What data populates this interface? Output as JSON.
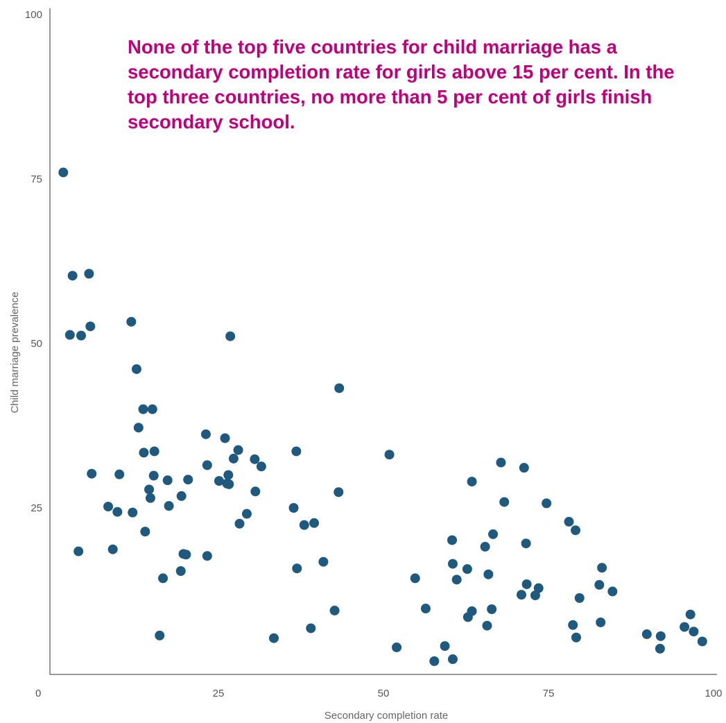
{
  "chart_data": {
    "type": "scatter",
    "title": "",
    "xlabel": "Secondary completion rate",
    "ylabel": "Child marriage prevalence",
    "xlim": [
      0,
      100
    ],
    "ylim": [
      0,
      100
    ],
    "xticks": [
      "0",
      "25",
      "50",
      "75",
      "100"
    ],
    "yticks": [
      "25",
      "50",
      "75",
      "100"
    ],
    "grid": false,
    "annotation": "None of the top five countries for child marriage has a secondary completion rate for girls above 15 per cent. In the top three countries, no more than 5 per cent of girls finish secondary school.",
    "annotation_color": "#c0007a",
    "marker_color": "#1f5a7e",
    "points": [
      [
        1.5,
        76
      ],
      [
        2.9,
        60.3
      ],
      [
        5.4,
        60.6
      ],
      [
        2.5,
        51.3
      ],
      [
        4.2,
        51.2
      ],
      [
        5.6,
        52.6
      ],
      [
        11.8,
        53.3
      ],
      [
        12.6,
        46.1
      ],
      [
        26.8,
        51.1
      ],
      [
        43.3,
        43.2
      ],
      [
        50.9,
        33.1
      ],
      [
        13.6,
        40.0
      ],
      [
        15.0,
        40.0
      ],
      [
        12.9,
        37.2
      ],
      [
        13.7,
        33.4
      ],
      [
        15.3,
        33.6
      ],
      [
        5.8,
        30.2
      ],
      [
        10.0,
        30.1
      ],
      [
        15.2,
        29.9
      ],
      [
        17.3,
        29.2
      ],
      [
        20.4,
        29.3
      ],
      [
        23.1,
        36.2
      ],
      [
        26.0,
        35.6
      ],
      [
        28.0,
        33.8
      ],
      [
        36.8,
        33.6
      ],
      [
        23.3,
        31.5
      ],
      [
        27.3,
        32.5
      ],
      [
        30.5,
        32.4
      ],
      [
        31.5,
        31.3
      ],
      [
        25.1,
        29.1
      ],
      [
        26.5,
        30.0
      ],
      [
        26.3,
        28.7
      ],
      [
        26.6,
        28.6
      ],
      [
        30.6,
        27.5
      ],
      [
        43.2,
        27.4
      ],
      [
        14.5,
        27.8
      ],
      [
        14.7,
        26.5
      ],
      [
        19.4,
        26.8
      ],
      [
        8.3,
        25.2
      ],
      [
        9.7,
        24.4
      ],
      [
        12.0,
        24.3
      ],
      [
        17.5,
        25.3
      ],
      [
        36.4,
        25.0
      ],
      [
        13.9,
        21.4
      ],
      [
        28.2,
        22.6
      ],
      [
        29.3,
        24.1
      ],
      [
        38.0,
        22.4
      ],
      [
        39.5,
        22.7
      ],
      [
        3.8,
        18.4
      ],
      [
        9.0,
        18.7
      ],
      [
        19.7,
        18.0
      ],
      [
        20.1,
        17.9
      ],
      [
        23.3,
        17.7
      ],
      [
        16.6,
        14.3
      ],
      [
        19.3,
        15.4
      ],
      [
        36.9,
        15.8
      ],
      [
        40.9,
        16.8
      ],
      [
        16.1,
        5.6
      ],
      [
        33.4,
        5.2
      ],
      [
        39.0,
        6.7
      ],
      [
        42.6,
        9.4
      ],
      [
        52.0,
        3.8
      ],
      [
        54.8,
        14.3
      ],
      [
        56.4,
        9.7
      ],
      [
        59.3,
        4.0
      ],
      [
        57.7,
        1.7
      ],
      [
        60.5,
        2.0
      ],
      [
        60.4,
        20.1
      ],
      [
        60.5,
        16.5
      ],
      [
        61.1,
        14.1
      ],
      [
        62.7,
        15.7
      ],
      [
        62.8,
        8.4
      ],
      [
        63.4,
        9.3
      ],
      [
        63.4,
        29.0
      ],
      [
        65.4,
        19.1
      ],
      [
        65.7,
        7.1
      ],
      [
        65.9,
        14.9
      ],
      [
        66.4,
        9.6
      ],
      [
        66.6,
        21.0
      ],
      [
        67.8,
        31.9
      ],
      [
        68.3,
        25.9
      ],
      [
        70.9,
        11.8
      ],
      [
        71.3,
        31.1
      ],
      [
        71.6,
        19.6
      ],
      [
        71.7,
        13.4
      ],
      [
        73.0,
        11.7
      ],
      [
        73.5,
        12.8
      ],
      [
        74.7,
        25.7
      ],
      [
        78.1,
        22.9
      ],
      [
        78.7,
        7.2
      ],
      [
        79.1,
        21.6
      ],
      [
        79.2,
        5.3
      ],
      [
        79.7,
        11.3
      ],
      [
        82.7,
        13.3
      ],
      [
        82.9,
        7.6
      ],
      [
        83.1,
        15.9
      ],
      [
        84.7,
        12.3
      ],
      [
        89.9,
        5.8
      ],
      [
        91.9,
        3.6
      ],
      [
        92.0,
        5.5
      ],
      [
        95.6,
        6.9
      ],
      [
        96.5,
        8.8
      ],
      [
        97.0,
        6.2
      ],
      [
        98.3,
        4.7
      ]
    ]
  }
}
